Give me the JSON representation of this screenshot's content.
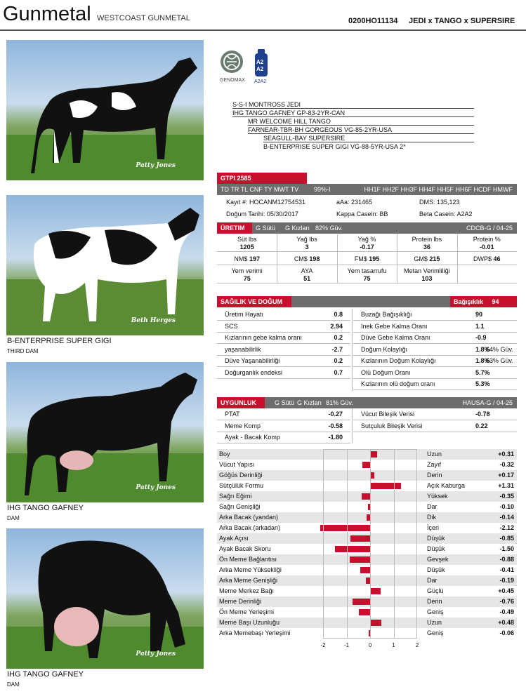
{
  "header": {
    "name": "Gunmetal",
    "full_name": "WESTCOAST GUNMETAL",
    "code": "0200HO11134",
    "pedigree_short": "JEDI x TANGO x SUPERSIRE"
  },
  "photos": [
    {
      "credit": "Patty Jones",
      "caption": "",
      "relation": ""
    },
    {
      "credit": "Beth Herges",
      "caption": "B-ENTERPRISE SUPER GIGI",
      "relation": "THIRD DAM"
    },
    {
      "credit": "Patty Jones",
      "caption": "IHG TANGO GAFNEY",
      "relation": "DAM"
    },
    {
      "credit": "Patty Jones",
      "caption": "IHG TANGO GAFNEY",
      "relation": "DAM"
    }
  ],
  "logos": {
    "genomax_label": "GENOMAX",
    "a2_label": "A2A2",
    "a2_top": "A2",
    "a2_bottom": "A2"
  },
  "pedigree": [
    "S-S-I MONTROSS JEDI",
    "IHG TANGO GAFNEY GP-83-2YR-CAN",
    "MR WELCOME HILL TANGO",
    "FARNEAR-TBR-BH GORGEOUS VG-85-2YR-USA",
    "SEAGULL-BAY SUPERSIRE",
    "B-ENTERPRISE SUPER GIGI VG-88-5YR-USA 2*"
  ],
  "gtpi": {
    "label": "GTPI 2585",
    "tags": "TD TR TL CNF TY MWT TV",
    "rel": "99%-I",
    "haplos": "HH1F HH2F HH3F HH4F HH5F HH6F HCDF HMWF",
    "kayit": "Kayıt #: HOCANM12754531",
    "aaa": "aAa: 231465",
    "dms": "DMS: 135,123",
    "dogum": "Doğum Tarihi: 05/30/2017",
    "kappa": "Kappa Casein: BB",
    "beta": "Beta Casein: A2A2"
  },
  "production": {
    "label": "ÜRETIM",
    "g_sutu": "G Sütü",
    "g_kizlari": "G Kızları",
    "rel": "82% Güv.",
    "source": "CDCB-G / 04-25",
    "row1": [
      {
        "label": "Süt lbs",
        "value": "1205"
      },
      {
        "label": "Yağ lbs",
        "value": "3"
      },
      {
        "label": "Yağ %",
        "value": "-0.17"
      },
      {
        "label": "Protein lbs",
        "value": "36"
      },
      {
        "label": "Protein %",
        "value": "-0.01"
      }
    ],
    "row2": [
      {
        "label": "NM$",
        "value": "197"
      },
      {
        "label": "CM$",
        "value": "198"
      },
      {
        "label": "FM$",
        "value": "195"
      },
      {
        "label": "GM$",
        "value": "215"
      },
      {
        "label": "DWP$",
        "value": "46"
      }
    ],
    "row3": [
      {
        "label": "Yem verimi",
        "value": "75"
      },
      {
        "label": "AYA",
        "value": "51"
      },
      {
        "label": "Yem tasarrufu",
        "value": "75"
      },
      {
        "label": "Metan Verimliliği",
        "value": "103"
      }
    ]
  },
  "health": {
    "label": "SAĞILIK VE DOĞUM",
    "immunity_label": "Bağışıklık",
    "immunity_value": "94",
    "left": [
      {
        "label": "Üretim Hayatı",
        "value": "0.8"
      },
      {
        "label": "SCS",
        "value": "2.94"
      },
      {
        "label": "Kızlarının gebe kalma oranı",
        "value": "0.2"
      },
      {
        "label": "yaşanabilirlik",
        "value": "-2.7"
      },
      {
        "label": "Düve Yaşanabilirliği",
        "value": "0.2"
      },
      {
        "label": "Doğurganlık endeksi",
        "value": "0.7"
      }
    ],
    "right": [
      {
        "label": "Buzağı Bağışıklığı",
        "value": "90",
        "rel": ""
      },
      {
        "label": "Inek Gebe Kalma Oranı",
        "value": "1.1",
        "rel": ""
      },
      {
        "label": "Düve Gebe Kalma Oranı",
        "value": "-0.9",
        "rel": ""
      },
      {
        "label": "Doğum Kolaylığı",
        "value": "1.8%",
        "rel": "64% Güv."
      },
      {
        "label": "Kızlarının Doğum Kolaylığı",
        "value": "1.8%",
        "rel": "63% Güv."
      },
      {
        "label": "Olü Doğum Oranı",
        "value": "5.7%",
        "rel": ""
      },
      {
        "label": "Kızlarının olü doğum oranı",
        "value": "5.3%",
        "rel": ""
      }
    ]
  },
  "conformation": {
    "label": "UYGUNLUK",
    "g_sutu": "G Sütü",
    "g_kizlari": "G Kızları",
    "rel": "81% Güv.",
    "source": "HAUSA-G / 04-25",
    "left": [
      {
        "label": "PTAT",
        "value": "-0.27"
      },
      {
        "label": "Meme Komp",
        "value": "-0.58"
      },
      {
        "label": "Ayak - Bacak Komp",
        "value": "-1.80"
      }
    ],
    "right": [
      {
        "label": "Vücut Bileşik Verisi",
        "value": "-0.78"
      },
      {
        "label": "Sutçuluk Bileşik Verisi",
        "value": "0.22"
      }
    ]
  },
  "chart_data": {
    "type": "bar",
    "orientation": "horizontal",
    "xlim": [
      -2,
      2
    ],
    "ticks": [
      "-2",
      "-1",
      "0",
      "1",
      "2"
    ],
    "bar_color": "#c8102e",
    "traits": [
      {
        "name": "Boy",
        "desc": "Uzun",
        "value": 0.31,
        "label": "+0.31"
      },
      {
        "name": "Vücut Yapısı",
        "desc": "Zayıf",
        "value": -0.32,
        "label": "-0.32"
      },
      {
        "name": "Göğüs Derinliği",
        "desc": "Derin",
        "value": 0.17,
        "label": "+0.17"
      },
      {
        "name": "Sütçülük Formu",
        "desc": "Açık Kaburga",
        "value": 1.31,
        "label": "+1.31"
      },
      {
        "name": "Sağrı Eğimi",
        "desc": "Yüksek",
        "value": -0.35,
        "label": "-0.35"
      },
      {
        "name": "Sağrı Genişliği",
        "desc": "Dar",
        "value": -0.1,
        "label": "-0.10"
      },
      {
        "name": "Arka Bacak (yandan)",
        "desc": "Dik",
        "value": -0.14,
        "label": "-0.14"
      },
      {
        "name": "Arka Bacak (arkadan)",
        "desc": "İçeri",
        "value": -2.12,
        "label": "-2.12"
      },
      {
        "name": "Ayak Açısı",
        "desc": "Düşük",
        "value": -0.85,
        "label": "-0.85"
      },
      {
        "name": "Ayak Bacak Skoru",
        "desc": "Düşük",
        "value": -1.5,
        "label": "-1.50"
      },
      {
        "name": "Ön Meme Bağlantısı",
        "desc": "Gevşek",
        "value": -0.88,
        "label": "-0.88"
      },
      {
        "name": "Arka Meme Yüksekliği",
        "desc": "Düşük",
        "value": -0.41,
        "label": "-0.41"
      },
      {
        "name": "Arka Meme Genişliği",
        "desc": "Dar",
        "value": -0.19,
        "label": "-0.19"
      },
      {
        "name": "Meme Merkez Bağı",
        "desc": "Güçlü",
        "value": 0.45,
        "label": "+0.45"
      },
      {
        "name": "Meme Derinliği",
        "desc": "Derin",
        "value": -0.76,
        "label": "-0.76"
      },
      {
        "name": "Ön Meme Yerleşimi",
        "desc": "Geniş",
        "value": -0.49,
        "label": "-0.49"
      },
      {
        "name": "Meme Başı Uzunluğu",
        "desc": "Uzun",
        "value": 0.48,
        "label": "+0.48"
      },
      {
        "name": "Arka Memebaşı Yerleşimi",
        "desc": "Geniş",
        "value": -0.06,
        "label": "-0.06"
      }
    ]
  }
}
